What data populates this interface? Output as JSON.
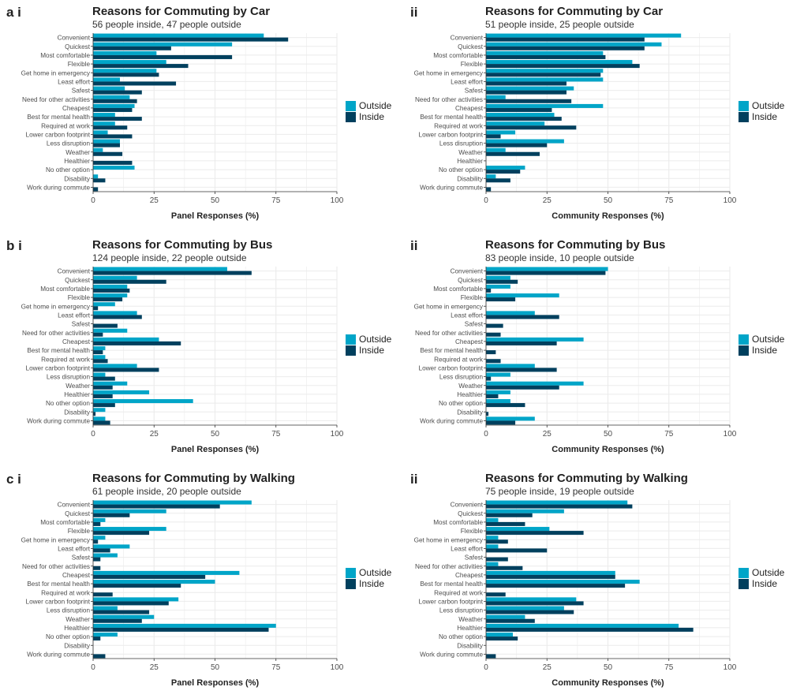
{
  "colors": {
    "outside": "#00A5C8",
    "inside": "#00405E",
    "grid": "#EBEBEB",
    "axis": "#333333"
  },
  "legend": {
    "outside_label": "Outside",
    "inside_label": "Inside"
  },
  "chart_data": [
    {
      "id": "a-i",
      "tag": "a i",
      "type": "bar",
      "orientation": "horizontal",
      "title": "Reasons for Commuting by Car",
      "subtitle": "56 people inside, 47 people outside",
      "xlabel": "Panel Responses (%)",
      "xlim": [
        0,
        100
      ],
      "xticks": [
        "0",
        "25",
        "50",
        "75",
        "100"
      ],
      "categories": [
        "Convenient",
        "Quickest",
        "Most comfortable",
        "Flexible",
        "Get home in emergency",
        "Least effort",
        "Safest",
        "Need for other activities",
        "Cheapest",
        "Best for mental health",
        "Required at work",
        "Lower carbon footprint",
        "Less disruption",
        "Weather",
        "Healthier",
        "No other option",
        "Disability",
        "Work during commute"
      ],
      "series": [
        {
          "name": "Outside",
          "values": [
            70,
            57,
            26,
            30,
            26,
            11,
            13,
            15,
            17,
            9,
            9,
            6,
            11,
            4,
            0,
            17,
            2,
            0
          ]
        },
        {
          "name": "Inside",
          "values": [
            80,
            32,
            57,
            39,
            27,
            34,
            20,
            18,
            16,
            20,
            14,
            16,
            11,
            12,
            16,
            0,
            5,
            2
          ]
        }
      ]
    },
    {
      "id": "a-ii",
      "tag": "ii",
      "type": "bar",
      "orientation": "horizontal",
      "title": "Reasons for Commuting by Car",
      "subtitle": "51 people inside, 25 people outside",
      "xlabel": "Community Responses (%)",
      "xlim": [
        0,
        100
      ],
      "xticks": [
        "0",
        "25",
        "50",
        "75",
        "100"
      ],
      "categories": [
        "Convenient",
        "Quickest",
        "Most comfortable",
        "Flexible",
        "Get home in emergency",
        "Least effort",
        "Safest",
        "Need for other activities",
        "Cheapest",
        "Best for mental health",
        "Required at work",
        "Lower carbon footprint",
        "Less disruption",
        "Weather",
        "Healthier",
        "No other option",
        "Disability",
        "Work during commute"
      ],
      "series": [
        {
          "name": "Outside",
          "values": [
            80,
            72,
            48,
            60,
            48,
            48,
            36,
            8,
            48,
            28,
            24,
            12,
            32,
            8,
            0,
            16,
            4,
            0
          ]
        },
        {
          "name": "Inside",
          "values": [
            65,
            65,
            49,
            63,
            47,
            33,
            33,
            35,
            27,
            31,
            37,
            6,
            25,
            22,
            0,
            14,
            10,
            2
          ]
        }
      ]
    },
    {
      "id": "b-i",
      "tag": "b i",
      "type": "bar",
      "orientation": "horizontal",
      "title": "Reasons for Commuting by Bus",
      "subtitle": "124 people inside, 22 people outside",
      "xlabel": "Panel Responses (%)",
      "xlim": [
        0,
        100
      ],
      "xticks": [
        "0",
        "25",
        "50",
        "75",
        "100"
      ],
      "categories": [
        "Convenient",
        "Quickest",
        "Most comfortable",
        "Flexible",
        "Get home in emergency",
        "Least effort",
        "Safest",
        "Need for other activities",
        "Cheapest",
        "Best for mental health",
        "Required at work",
        "Lower carbon footprint",
        "Less disruption",
        "Weather",
        "Healthier",
        "No other option",
        "Disability",
        "Work during commute"
      ],
      "series": [
        {
          "name": "Outside",
          "values": [
            55,
            18,
            14,
            14,
            9,
            18,
            0,
            14,
            27,
            5,
            5,
            18,
            5,
            14,
            23,
            41,
            5,
            5
          ]
        },
        {
          "name": "Inside",
          "values": [
            65,
            30,
            15,
            12,
            2,
            20,
            10,
            4,
            36,
            4,
            6,
            27,
            9,
            8,
            8,
            9,
            1,
            7
          ]
        }
      ]
    },
    {
      "id": "b-ii",
      "tag": "ii",
      "type": "bar",
      "orientation": "horizontal",
      "title": "Reasons for Commuting by Bus",
      "subtitle": "83 people inside, 10 people outside",
      "xlabel": "Community Responses (%)",
      "xlim": [
        0,
        100
      ],
      "xticks": [
        "0",
        "25",
        "50",
        "75",
        "100"
      ],
      "categories": [
        "Convenient",
        "Quickest",
        "Most comfortable",
        "Flexible",
        "Get home in emergency",
        "Least effort",
        "Safest",
        "Need for other activities",
        "Cheapest",
        "Best for mental health",
        "Required at work",
        "Lower carbon footprint",
        "Less disruption",
        "Weather",
        "Healthier",
        "No other option",
        "Disability",
        "Work during commute"
      ],
      "series": [
        {
          "name": "Outside",
          "values": [
            50,
            10,
            10,
            30,
            0,
            20,
            0,
            0,
            40,
            0,
            0,
            20,
            10,
            40,
            10,
            10,
            0,
            20
          ]
        },
        {
          "name": "Inside",
          "values": [
            49,
            13,
            2,
            12,
            0,
            30,
            7,
            6,
            29,
            4,
            6,
            29,
            2,
            30,
            5,
            16,
            1,
            12
          ]
        }
      ]
    },
    {
      "id": "c-i",
      "tag": "c i",
      "type": "bar",
      "orientation": "horizontal",
      "title": "Reasons for Commuting by Walking",
      "subtitle": "61 people inside, 20 people outside",
      "xlabel": "Panel Responses (%)",
      "xlim": [
        0,
        100
      ],
      "xticks": [
        "0",
        "25",
        "50",
        "75",
        "100"
      ],
      "categories": [
        "Convenient",
        "Quickest",
        "Most comfortable",
        "Flexible",
        "Get home in emergency",
        "Least effort",
        "Safest",
        "Need for other activities",
        "Cheapest",
        "Best for mental health",
        "Required at work",
        "Lower carbon footprint",
        "Less disruption",
        "Weather",
        "Healthier",
        "No other option",
        "Disability",
        "Work during commute"
      ],
      "series": [
        {
          "name": "Outside",
          "values": [
            65,
            30,
            5,
            30,
            5,
            15,
            10,
            0,
            60,
            50,
            0,
            35,
            10,
            25,
            75,
            10,
            0,
            0
          ]
        },
        {
          "name": "Inside",
          "values": [
            52,
            15,
            3,
            23,
            2,
            7,
            3,
            3,
            46,
            36,
            8,
            31,
            23,
            20,
            72,
            3,
            0,
            5
          ]
        }
      ]
    },
    {
      "id": "c-ii",
      "tag": "ii",
      "type": "bar",
      "orientation": "horizontal",
      "title": "Reasons for Commuting by Walking",
      "subtitle": "75 people inside, 19 people outside",
      "xlabel": "Community Responses (%)",
      "xlim": [
        0,
        100
      ],
      "xticks": [
        "0",
        "25",
        "50",
        "75",
        "100"
      ],
      "categories": [
        "Convenient",
        "Quickest",
        "Most comfortable",
        "Flexible",
        "Get home in emergency",
        "Least effort",
        "Safest",
        "Need for other activities",
        "Cheapest",
        "Best for mental health",
        "Required at work",
        "Lower carbon footprint",
        "Less disruption",
        "Weather",
        "Healthier",
        "No other option",
        "Disability",
        "Work during commute"
      ],
      "series": [
        {
          "name": "Outside",
          "values": [
            58,
            32,
            5,
            26,
            5,
            5,
            0,
            5,
            53,
            63,
            0,
            37,
            32,
            16,
            79,
            11,
            0,
            0
          ]
        },
        {
          "name": "Inside",
          "values": [
            60,
            19,
            16,
            40,
            9,
            25,
            9,
            15,
            53,
            57,
            8,
            40,
            36,
            20,
            85,
            13,
            0,
            4
          ]
        }
      ]
    }
  ]
}
